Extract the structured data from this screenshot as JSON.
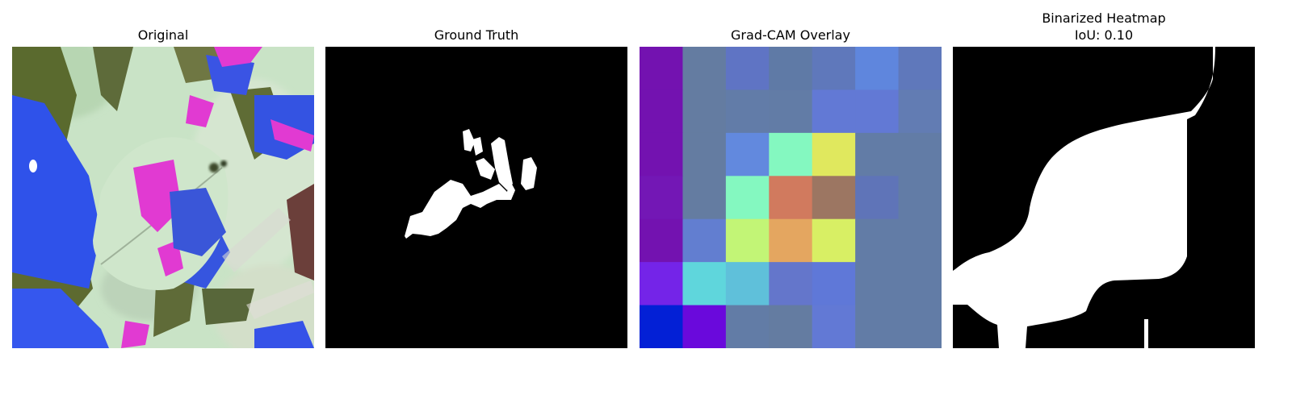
{
  "panels": [
    {
      "title": "Original"
    },
    {
      "title": "Ground Truth"
    },
    {
      "title": "Grad-CAM Overlay"
    },
    {
      "title": "Binarized Heatmap",
      "subtitle": "IoU: 0.10"
    }
  ],
  "gradcam_grid": [
    [
      "#7312b0",
      "#647ca1",
      "#5f74c4",
      "#5f7aa6",
      "#5f78bb",
      "#5f86dd",
      "#5f78bb"
    ],
    [
      "#7312b0",
      "#647ca1",
      "#627ca8",
      "#627ca6",
      "#6279d5",
      "#6279d5",
      "#627cb3"
    ],
    [
      "#7312b0",
      "#647ca1",
      "#6289de",
      "#84f8c0",
      "#e0e85e",
      "#627ca6",
      "#627ca6"
    ],
    [
      "#7317b5",
      "#647ca1",
      "#84f8c0",
      "#d17a5e",
      "#9c7662",
      "#5f74b8",
      "#627ca6"
    ],
    [
      "#7312b0",
      "#627ed0",
      "#c2f576",
      "#e4a660",
      "#d8ef64",
      "#627ca6",
      "#627ca6"
    ],
    [
      "#7424e8",
      "#5fd6dc",
      "#5fc0da",
      "#6476cb",
      "#5f78d8",
      "#627ca6",
      "#627ca6"
    ],
    [
      "#0320d6",
      "#6a09dc",
      "#627ca6",
      "#647ca1",
      "#6279d5",
      "#627ca6",
      "#627ca6"
    ]
  ]
}
